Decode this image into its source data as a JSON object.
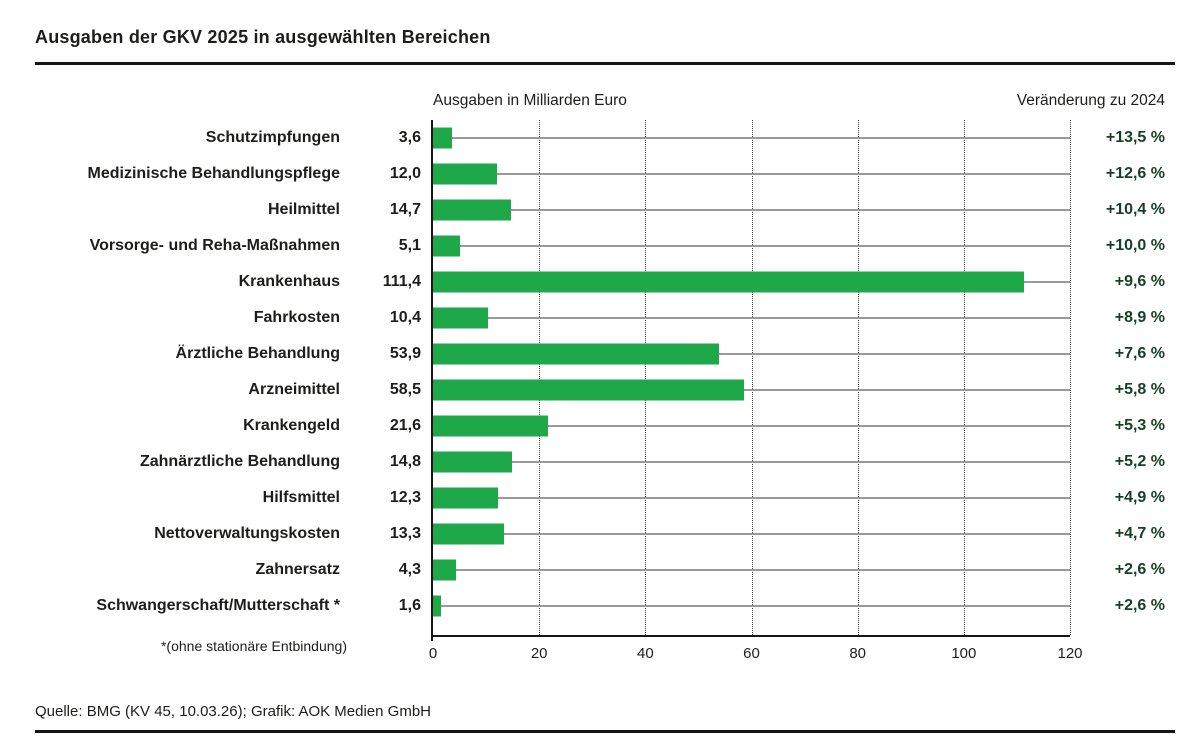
{
  "title": "Ausgaben der GKV 2025 in ausgewählten Bereichen",
  "column_headers": {
    "amount": "Ausgaben in Milliarden Euro",
    "change": "Veränderung zu 2024"
  },
  "footnote": "*(ohne stationäre Entbindung)",
  "source": "Quelle: BMG (KV 45, 10.03.26); Grafik: AOK Medien GmbH",
  "colors": {
    "bar_green": "#1fa84a",
    "change_text_green": "#163f27",
    "text_black": "#1d1d1b",
    "leader_gray": "#9a9a9a",
    "grid_dotted": "#3c3c3b"
  },
  "chart_data": {
    "type": "bar",
    "orientation": "horizontal",
    "title": "Ausgaben der GKV 2025 in ausgewählten Bereichen",
    "xlabel": "Ausgaben in Milliarden Euro",
    "right_column_label": "Veränderung zu 2024",
    "xlim": [
      0,
      120
    ],
    "xticks": [
      0,
      20,
      40,
      60,
      80,
      100,
      120
    ],
    "grid": "vertical dotted lines at each tick, gray leader line from bar end to right edge",
    "legend": "none",
    "rows": [
      {
        "label": "Schutzimpfungen",
        "value": 3.6,
        "value_label": "3,6",
        "change": "+13,5 %"
      },
      {
        "label": "Medizinische Behandlungspflege",
        "value": 12.0,
        "value_label": "12,0",
        "change": "+12,6 %"
      },
      {
        "label": "Heilmittel",
        "value": 14.7,
        "value_label": "14,7",
        "change": "+10,4 %"
      },
      {
        "label": "Vorsorge- und Reha-Maßnahmen",
        "value": 5.1,
        "value_label": "5,1",
        "change": "+10,0 %"
      },
      {
        "label": "Krankenhaus",
        "value": 111.4,
        "value_label": "111,4",
        "change": "+9,6 %"
      },
      {
        "label": "Fahrkosten",
        "value": 10.4,
        "value_label": "10,4",
        "change": "+8,9 %"
      },
      {
        "label": "Ärztliche Behandlung",
        "value": 53.9,
        "value_label": "53,9",
        "change": "+7,6 %"
      },
      {
        "label": "Arzneimittel",
        "value": 58.5,
        "value_label": "58,5",
        "change": "+5,8 %"
      },
      {
        "label": "Krankengeld",
        "value": 21.6,
        "value_label": "21,6",
        "change": "+5,3 %"
      },
      {
        "label": "Zahnärztliche Behandlung",
        "value": 14.8,
        "value_label": "14,8",
        "change": "+5,2 %"
      },
      {
        "label": "Hilfsmittel",
        "value": 12.3,
        "value_label": "12,3",
        "change": "+4,9 %"
      },
      {
        "label": "Nettoverwaltungskosten",
        "value": 13.3,
        "value_label": "13,3",
        "change": "+4,7 %"
      },
      {
        "label": "Zahnersatz",
        "value": 4.3,
        "value_label": "4,3",
        "change": "+2,6 %"
      },
      {
        "label": "Schwangerschaft/Mutterschaft *",
        "value": 1.6,
        "value_label": "1,6",
        "change": "+2,6 %"
      }
    ]
  }
}
